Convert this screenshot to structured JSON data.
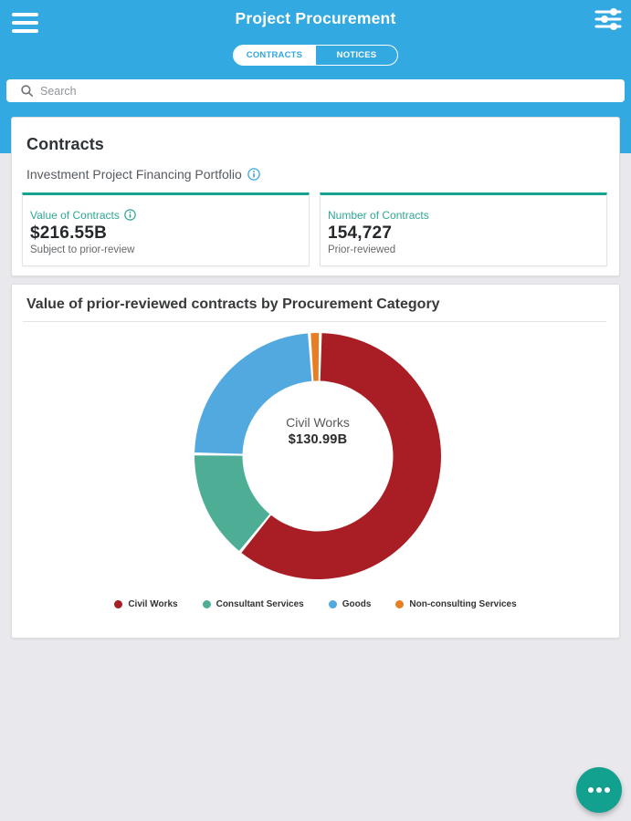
{
  "header": {
    "title": "Project Procurement",
    "tabs": [
      {
        "label": "CONTRACTS",
        "active": true
      },
      {
        "label": "NOTICES",
        "active": false
      }
    ]
  },
  "search": {
    "placeholder": "Search"
  },
  "contracts_card": {
    "title": "Contracts",
    "subtitle": "Investment Project Financing Portfolio",
    "stats": [
      {
        "label": "Value of Contracts",
        "value": "$216.55B",
        "caption": "Subject to prior-review",
        "has_info_icon": true
      },
      {
        "label": "Number of Contracts",
        "value": "154,727",
        "caption": "Prior-reviewed",
        "has_info_icon": false
      }
    ]
  },
  "chart_card": {
    "title": "Value of prior-reviewed contracts by Procurement Category",
    "center_label": "Civil Works",
    "center_value": "$130.99B"
  },
  "chart_data": {
    "type": "pie",
    "donut": true,
    "title": "Value of prior-reviewed contracts by Procurement Category",
    "unit": "USD billions",
    "total": 216.55,
    "center_label": {
      "name": "Civil Works",
      "value": "$130.99B"
    },
    "start_angle_deg": 1.2,
    "direction": "clockwise",
    "inner_radius_ratio": 0.611,
    "legend_position": "bottom",
    "segments": [
      {
        "label": "Civil Works",
        "value": 130.99,
        "color": "#A81E24",
        "estimated": false
      },
      {
        "label": "Consultant Services",
        "value": 31.3,
        "color": "#4EAE95",
        "estimated": true
      },
      {
        "label": "Goods",
        "value": 51.16,
        "color": "#52A9E0",
        "estimated": true
      },
      {
        "label": "Non-consulting Services",
        "value": 3.1,
        "color": "#E87E23",
        "estimated": true
      }
    ]
  },
  "fab": {
    "icon": "more-dots"
  },
  "colors": {
    "appbar": "#32A9E1",
    "tab_active_text": "#2FA7DF",
    "stat_accent": "#14A292",
    "fab": "#12A18F",
    "page_background": "#E9E9ED"
  }
}
